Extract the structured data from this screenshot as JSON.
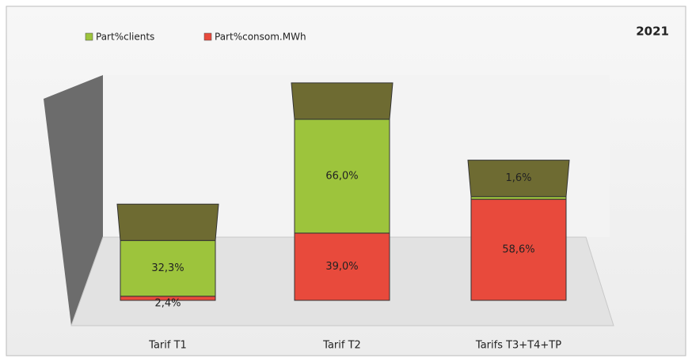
{
  "chart_data": {
    "type": "bar",
    "stacked": true,
    "title": "2021",
    "categories": [
      "Tarif T1",
      "Tarif T2",
      "Tarifs T3+T4+TP"
    ],
    "series": [
      {
        "name": "Part%consom.MWh",
        "color": "#e84a3c",
        "values": [
          2.4,
          39.0,
          58.6
        ],
        "value_labels": [
          "2,4%",
          "39,0%",
          "58,6%"
        ]
      },
      {
        "name": "Part%clients",
        "color": "#9dc43c",
        "values": [
          32.3,
          66.0,
          1.6
        ],
        "value_labels": [
          "32,3%",
          "66,0%",
          "1,6%"
        ]
      }
    ],
    "legend_order": [
      1,
      0
    ],
    "top_color": "#6e6b32",
    "ylim": [
      0,
      110
    ]
  }
}
